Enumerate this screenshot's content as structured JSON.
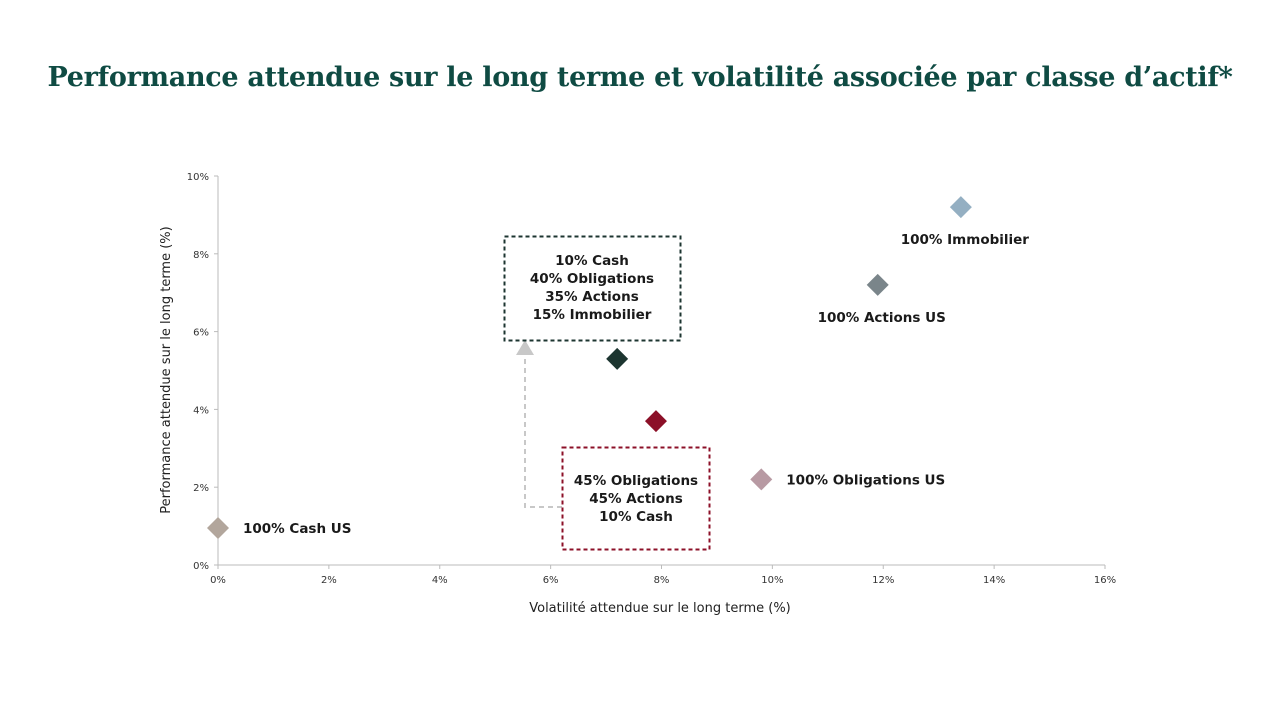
{
  "title": "Performance attendue sur le long terme et volatilité associée par classe d’actif*",
  "chart_data": {
    "type": "scatter",
    "title": "Performance attendue sur le long terme et volatilité associée par classe d’actif*",
    "xlabel": "Volatilité attendue sur le long terme (%)",
    "ylabel": "Performance attendue sur le long terme (%)",
    "xlim": [
      0,
      16
    ],
    "ylim": [
      0,
      10
    ],
    "x_ticks": [
      "0%",
      "2%",
      "4%",
      "6%",
      "8%",
      "10%",
      "12%",
      "14%",
      "16%"
    ],
    "y_ticks": [
      "0%",
      "2%",
      "4%",
      "6%",
      "8%",
      "10%"
    ],
    "grid": false,
    "points": [
      {
        "label": "100% Cash US",
        "x": 0.0,
        "y": 0.95,
        "color": "#b2a69c",
        "label_pos": "right"
      },
      {
        "label": "100% Immobilier",
        "x": 13.4,
        "y": 9.2,
        "color": "#94afc2",
        "label_pos": "below"
      },
      {
        "label": "100% Actions US",
        "x": 11.9,
        "y": 7.2,
        "color": "#7a858a",
        "label_pos": "below"
      },
      {
        "label": "100% Obligations US",
        "x": 9.8,
        "y": 2.2,
        "color": "#b89aa3",
        "label_pos": "right"
      },
      {
        "label": "",
        "x": 7.2,
        "y": 5.3,
        "color": "#1c3530",
        "label_pos": "none"
      },
      {
        "label": "",
        "x": 7.9,
        "y": 3.7,
        "color": "#8c1028",
        "label_pos": "none"
      }
    ],
    "annotations": [
      {
        "lines": [
          "10% Cash",
          "40% Obligations",
          "35% Actions",
          "15% Immobilier"
        ],
        "highlight_line": "15% Immobilier",
        "highlight_color": "#0f5a4e",
        "border_color": "#1c3530"
      },
      {
        "lines": [
          "45% Obligations",
          "45% Actions",
          "10% Cash"
        ],
        "border_color": "#8c1028"
      }
    ]
  }
}
